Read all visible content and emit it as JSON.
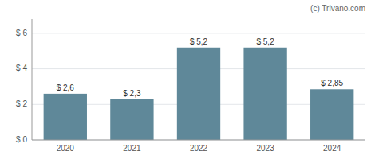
{
  "chart_data": {
    "type": "bar",
    "categories": [
      "2020",
      "2021",
      "2022",
      "2023",
      "2024"
    ],
    "values": [
      2.6,
      2.3,
      5.2,
      5.2,
      2.85
    ],
    "value_labels": [
      "$ 2,6",
      "$ 2,3",
      "$ 5,2",
      "$ 5,2",
      "$ 2,85"
    ],
    "data_labels": true,
    "color": "#5f8899",
    "ylim": [
      0,
      6.8
    ],
    "yticks": [
      {
        "value": 0,
        "label": "$ 0"
      },
      {
        "value": 2,
        "label": "$ 2"
      },
      {
        "value": 4,
        "label": "$ 4"
      },
      {
        "value": 6,
        "label": "$ 6"
      }
    ],
    "grid": true,
    "annotations": [
      "(c) Trivano.com"
    ]
  }
}
